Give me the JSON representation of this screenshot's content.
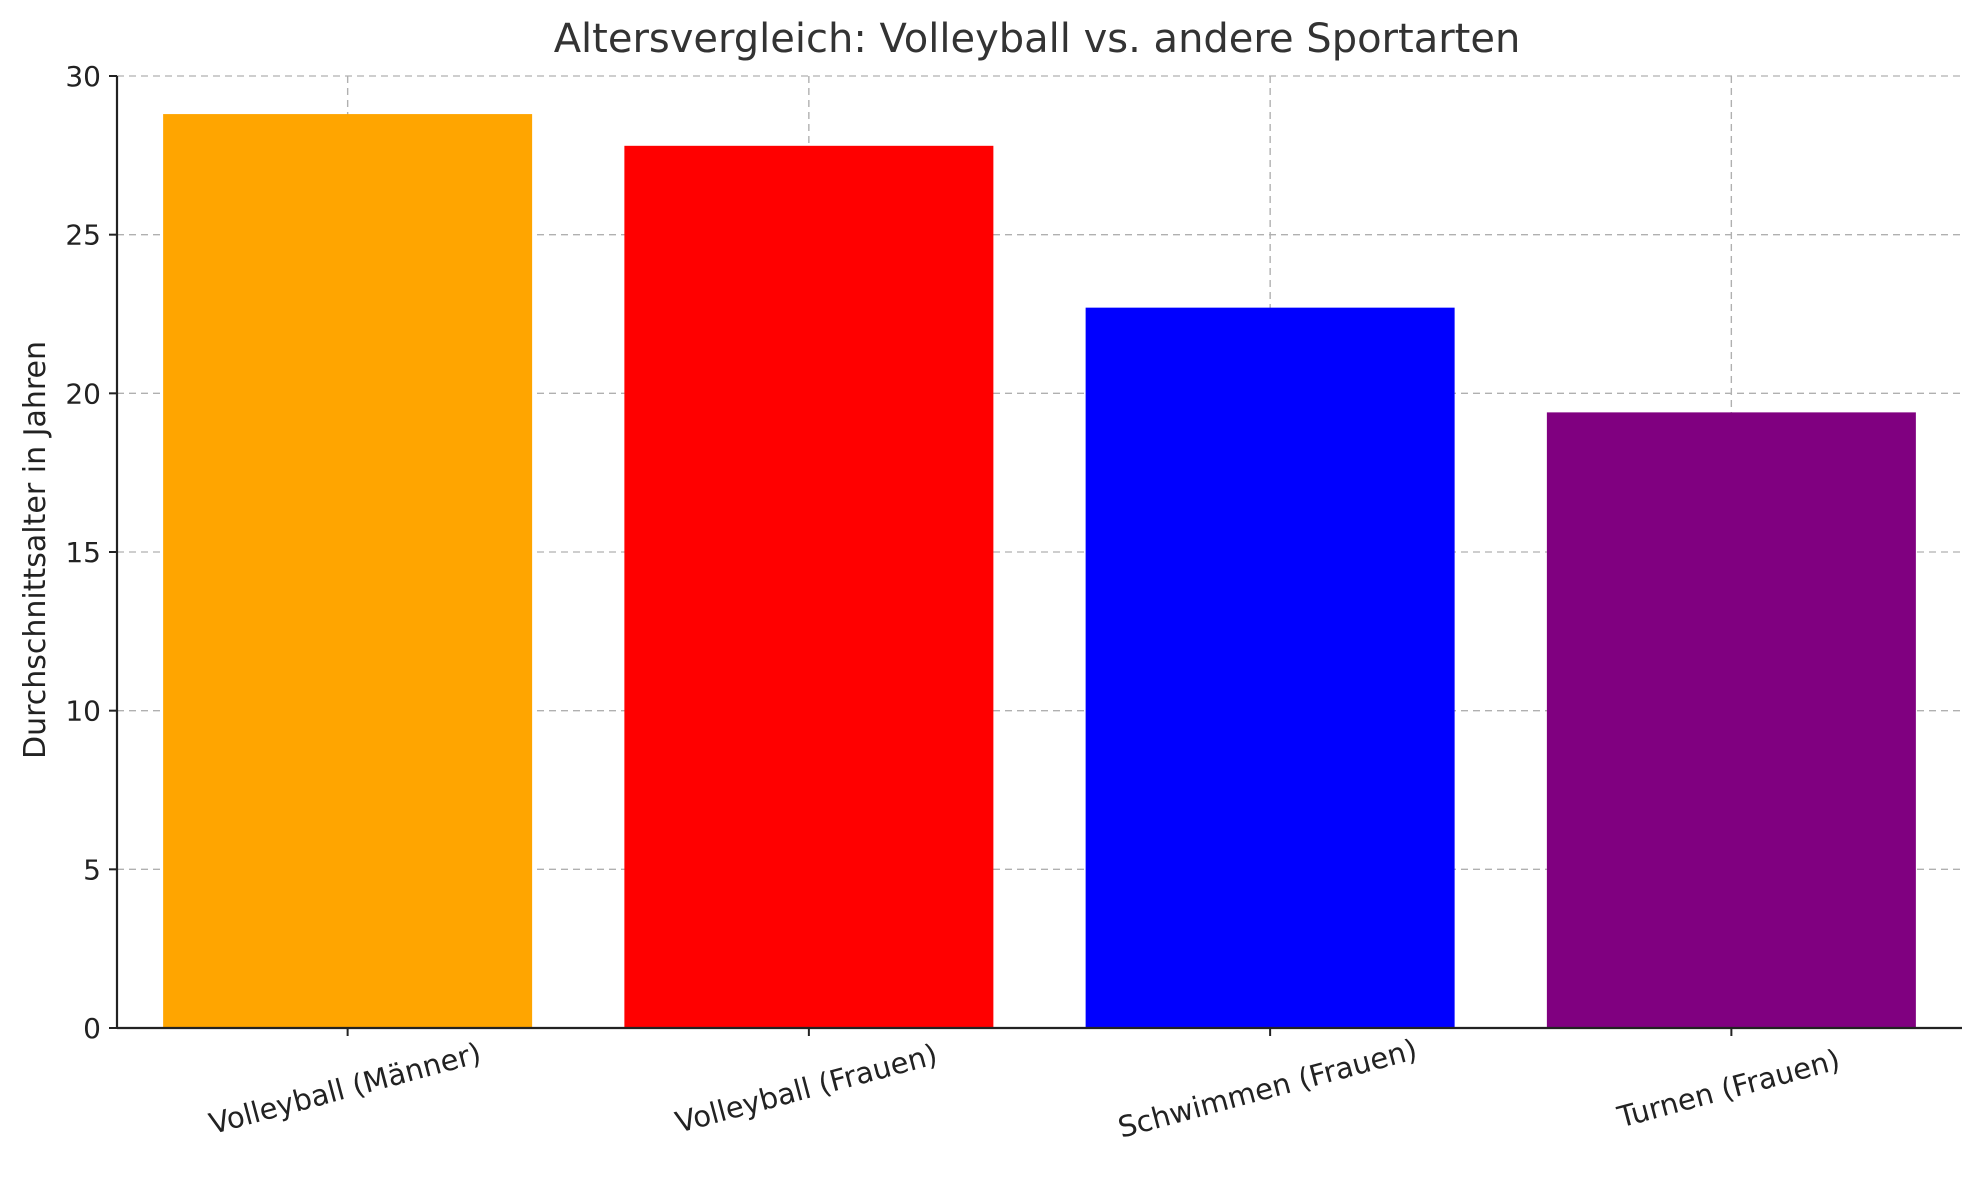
{
  "chart_data": {
    "type": "bar",
    "title": "Altersvergleich: Volleyball vs. andere Sportarten",
    "xlabel": "",
    "ylabel": "Durchschnittsalter in Jahren",
    "categories": [
      "Volleyball (Männer)",
      "Volleyball (Frauen)",
      "Schwimmen (Frauen)",
      "Turnen (Frauen)"
    ],
    "values": [
      28.8,
      27.8,
      22.7,
      19.4
    ],
    "colors": [
      "#ffa500",
      "#ff0000",
      "#0000ff",
      "#800080"
    ],
    "ylim": [
      0,
      30
    ],
    "yticks": [
      0,
      5,
      10,
      15,
      20,
      25,
      30
    ],
    "grid": true
  }
}
